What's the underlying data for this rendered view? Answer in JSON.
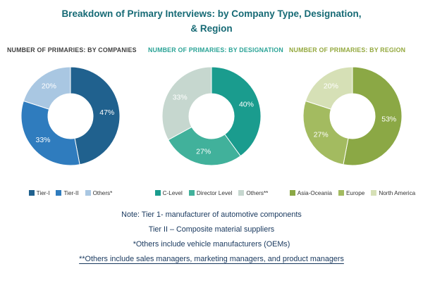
{
  "title": "Breakdown of Primary Interviews: by Company Type, Designation, & Region",
  "chart_data": [
    {
      "type": "pie",
      "donut": true,
      "title": "NUMBER OF PRIMARIES: BY COMPANIES",
      "title_color": "#3F3F3F",
      "categories": [
        "Tier-I",
        "Tier-II",
        "Others*"
      ],
      "values": [
        47,
        33,
        20
      ],
      "value_labels": [
        "47%",
        "33%",
        "20%"
      ],
      "colors": [
        "#20618E",
        "#2F7CBE",
        "#A9C7E2"
      ],
      "label_color": "#ffffff",
      "legend_position": "bottom",
      "start_angle": "top",
      "direction": "clockwise"
    },
    {
      "type": "pie",
      "donut": true,
      "title": "NUMBER OF PRIMARIES: BY DESIGNATION",
      "title_color": "#2AA396",
      "categories": [
        "C-Level",
        "Director Level",
        "Others**"
      ],
      "values": [
        40,
        27,
        33
      ],
      "value_labels": [
        "40%",
        "27%",
        "33%"
      ],
      "colors": [
        "#1A9C8E",
        "#41B19B",
        "#C6D7CF"
      ],
      "label_color": "#ffffff",
      "legend_position": "bottom",
      "start_angle": "top",
      "direction": "clockwise"
    },
    {
      "type": "pie",
      "donut": true,
      "title": "NUMBER OF PRIMARIES: BY REGION",
      "title_color": "#93A83D",
      "categories": [
        "Asia-Oceania",
        "Europe",
        "North America"
      ],
      "values": [
        53,
        27,
        20
      ],
      "value_labels": [
        "53%",
        "27%",
        "20%"
      ],
      "colors": [
        "#8BA845",
        "#A3BB60",
        "#D6E0B6"
      ],
      "label_color": "#ffffff",
      "legend_position": "bottom",
      "start_angle": "top",
      "direction": "clockwise"
    }
  ],
  "notes": [
    "Note: Tier 1- manufacturer of automotive components",
    "Tier II – Composite material suppliers",
    "*Others include vehicle manufacturers (OEMs)",
    "**Others include sales managers, marketing managers, and product managers"
  ]
}
